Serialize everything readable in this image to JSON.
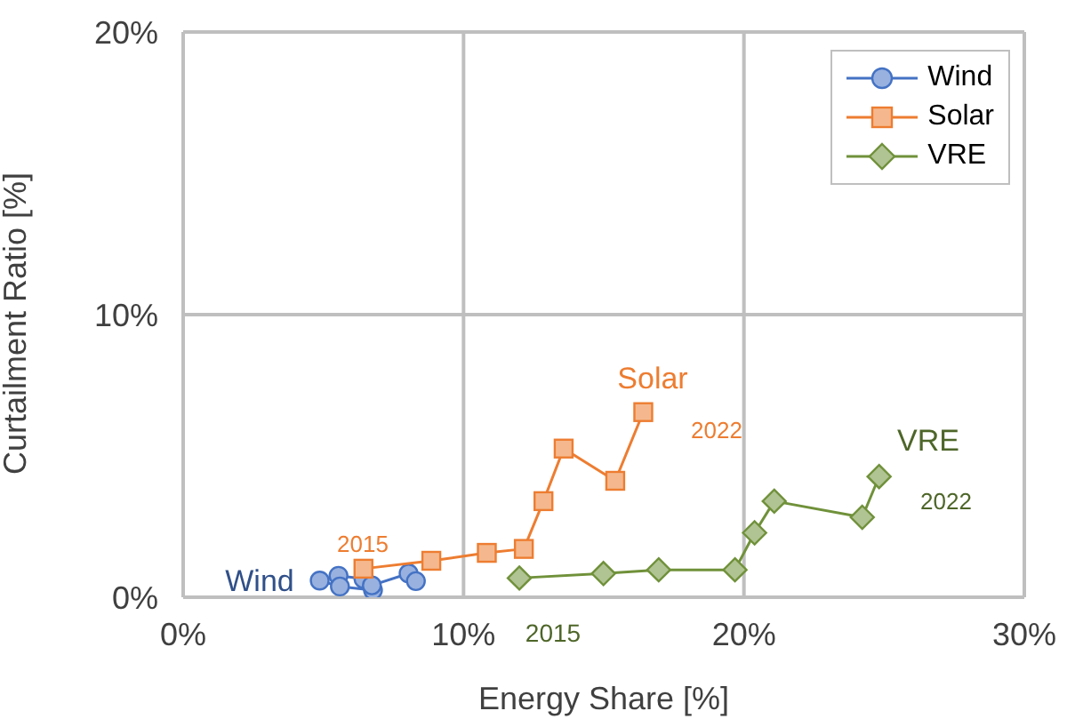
{
  "chart_data": {
    "type": "line",
    "xlabel": "Energy Share [%]",
    "ylabel": "Curtailment Ratio [%]",
    "xlim": [
      0,
      30
    ],
    "xticks": [
      {
        "value": 0,
        "label": "0%"
      },
      {
        "value": 10,
        "label": "10%"
      },
      {
        "value": 20,
        "label": "20%"
      },
      {
        "value": 30,
        "label": "30%"
      }
    ],
    "ylim": [
      0,
      20
    ],
    "yticks": [
      {
        "value": 0,
        "label": "0%"
      },
      {
        "value": 10,
        "label": "10%"
      },
      {
        "value": 20,
        "label": "20%"
      }
    ],
    "grid": true,
    "legend": "top right",
    "line_style": "solid",
    "series": [
      {
        "name": "Wind",
        "marker": "circle",
        "color": "#4472c4",
        "x": [
          6.43,
          5.54,
          4.87,
          5.59,
          6.77,
          6.73,
          8.04,
          8.3
        ],
        "values": [
          0.65,
          0.76,
          0.59,
          0.38,
          0.25,
          0.42,
          0.84,
          0.57
        ]
      },
      {
        "name": "Solar",
        "marker": "square",
        "color": "#ed7d31",
        "x": [
          6.43,
          8.85,
          10.83,
          12.15,
          12.85,
          13.57,
          15.41,
          16.41
        ],
        "values": [
          1.01,
          1.29,
          1.57,
          1.71,
          3.4,
          5.26,
          4.12,
          6.55
        ]
      },
      {
        "name": "VRE",
        "marker": "diamond",
        "color": "#70913a",
        "x": [
          11.99,
          14.99,
          16.96,
          19.68,
          20.38,
          21.08,
          24.22,
          24.82
        ],
        "values": [
          0.68,
          0.84,
          0.97,
          0.97,
          2.28,
          3.4,
          2.83,
          4.27
        ]
      }
    ],
    "annotations": [
      "Wind",
      "Solar",
      "VRE",
      "2015",
      "2022",
      "2015",
      "2022"
    ]
  }
}
